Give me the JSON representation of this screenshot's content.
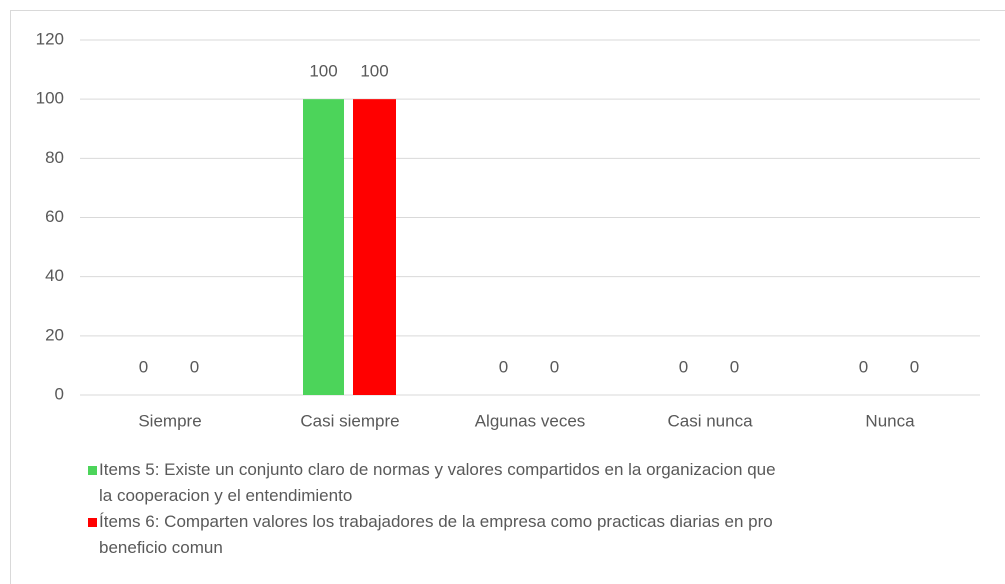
{
  "chart_data": {
    "type": "bar",
    "categories": [
      "Siempre",
      "Casi siempre",
      "Algunas veces",
      "Casi nunca",
      "Nunca"
    ],
    "series": [
      {
        "name": "Items 5: Existe un conjunto claro de normas y valores compartidos en la organizacion que\nla cooperacion y el entendimiento",
        "color": "#4cd45a",
        "values": [
          0,
          100,
          0,
          0,
          0
        ]
      },
      {
        "name": "Ítems 6: Comparten valores los trabajadores de la empresa como practicas diarias en pro\nbeneficio comun",
        "color": "#ff0000",
        "values": [
          0,
          100,
          0,
          0,
          0
        ]
      }
    ],
    "ylim": [
      0,
      120
    ],
    "yticks": [
      0,
      20,
      40,
      60,
      80,
      100,
      120
    ],
    "grid": true,
    "legend": "bottom"
  }
}
